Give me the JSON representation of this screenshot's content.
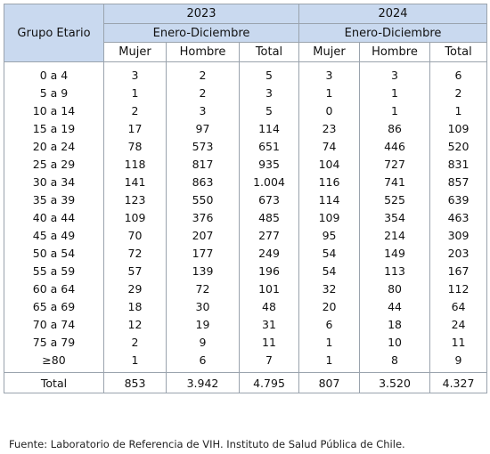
{
  "table": {
    "group_header": "Grupo Etario",
    "years": [
      "2023",
      "2024"
    ],
    "period": "Enero-Diciembre",
    "subheaders": [
      "Mujer",
      "Hombre",
      "Total"
    ],
    "rows": [
      {
        "group": "0 a 4",
        "values": [
          "3",
          "2",
          "5",
          "3",
          "3",
          "6"
        ]
      },
      {
        "group": "5 a 9",
        "values": [
          "1",
          "2",
          "3",
          "1",
          "1",
          "2"
        ]
      },
      {
        "group": "10 a 14",
        "values": [
          "2",
          "3",
          "5",
          "0",
          "1",
          "1"
        ]
      },
      {
        "group": "15 a 19",
        "values": [
          "17",
          "97",
          "114",
          "23",
          "86",
          "109"
        ]
      },
      {
        "group": "20 a 24",
        "values": [
          "78",
          "573",
          "651",
          "74",
          "446",
          "520"
        ]
      },
      {
        "group": "25 a 29",
        "values": [
          "118",
          "817",
          "935",
          "104",
          "727",
          "831"
        ]
      },
      {
        "group": "30 a 34",
        "values": [
          "141",
          "863",
          "1.004",
          "116",
          "741",
          "857"
        ]
      },
      {
        "group": "35 a 39",
        "values": [
          "123",
          "550",
          "673",
          "114",
          "525",
          "639"
        ]
      },
      {
        "group": "40 a 44",
        "values": [
          "109",
          "376",
          "485",
          "109",
          "354",
          "463"
        ]
      },
      {
        "group": "45 a 49",
        "values": [
          "70",
          "207",
          "277",
          "95",
          "214",
          "309"
        ]
      },
      {
        "group": "50 a 54",
        "values": [
          "72",
          "177",
          "249",
          "54",
          "149",
          "203"
        ]
      },
      {
        "group": "55 a 59",
        "values": [
          "57",
          "139",
          "196",
          "54",
          "113",
          "167"
        ]
      },
      {
        "group": "60 a 64",
        "values": [
          "29",
          "72",
          "101",
          "32",
          "80",
          "112"
        ]
      },
      {
        "group": "65 a 69",
        "values": [
          "18",
          "30",
          "48",
          "20",
          "44",
          "64"
        ]
      },
      {
        "group": "70 a 74",
        "values": [
          "12",
          "19",
          "31",
          "6",
          "18",
          "24"
        ]
      },
      {
        "group": "75 a 79",
        "values": [
          "2",
          "9",
          "11",
          "1",
          "10",
          "11"
        ]
      },
      {
        "group": "≥80",
        "values": [
          "1",
          "6",
          "7",
          "1",
          "8",
          "9"
        ]
      }
    ],
    "total": {
      "label": "Total",
      "values": [
        "853",
        "3.942",
        "4.795",
        "807",
        "3.520",
        "4.327"
      ]
    }
  },
  "source": "Fuente: Laboratorio de Referencia de VIH. Instituto de Salud Pública de Chile."
}
